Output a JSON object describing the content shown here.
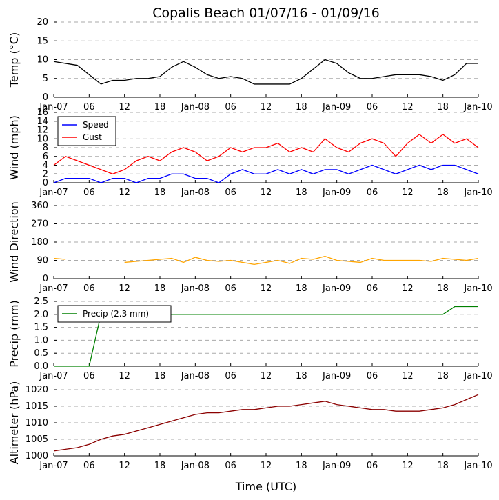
{
  "chart_data": [
    {
      "type": "line",
      "title": "Copalis Beach 01/07/16 - 01/09/16",
      "ylabel": "Temp (°C)",
      "x": [
        0,
        2,
        4,
        6,
        8,
        10,
        12,
        14,
        16,
        18,
        20,
        22,
        24,
        26,
        28,
        30,
        32,
        34,
        36,
        38,
        40,
        42,
        44,
        46,
        48,
        50,
        52,
        54,
        56,
        58,
        60,
        62,
        64,
        66,
        68,
        70,
        72
      ],
      "series": [
        {
          "name": "Temp",
          "color": "#000000",
          "values": [
            9.5,
            9,
            8.5,
            6,
            3.5,
            4.5,
            4.5,
            5,
            5,
            5.5,
            8,
            9.5,
            8,
            6,
            5,
            5.5,
            5,
            3.5,
            3.5,
            3.5,
            3.5,
            5,
            7.5,
            10,
            9,
            6.5,
            5,
            5,
            5.5,
            6,
            6,
            6,
            5.5,
            4.5,
            6,
            9,
            9
          ]
        }
      ],
      "xlim": [
        0,
        72
      ],
      "xticks": [
        {
          "value": 0,
          "label": "Jan-07"
        },
        {
          "value": 6,
          "label": "06"
        },
        {
          "value": 12,
          "label": "12"
        },
        {
          "value": 18,
          "label": "18"
        },
        {
          "value": 24,
          "label": "Jan-08"
        },
        {
          "value": 30,
          "label": "06"
        },
        {
          "value": 36,
          "label": "12"
        },
        {
          "value": 42,
          "label": "18"
        },
        {
          "value": 48,
          "label": "Jan-09"
        },
        {
          "value": 54,
          "label": "06"
        },
        {
          "value": 60,
          "label": "12"
        },
        {
          "value": 66,
          "label": "18"
        },
        {
          "value": 72,
          "label": "Jan-10"
        }
      ],
      "ylim": [
        0,
        20
      ],
      "yticks": [
        0,
        5,
        10,
        15,
        20
      ],
      "grid": true,
      "legend": null
    },
    {
      "type": "line",
      "ylabel": "Wind (mph)",
      "x": [
        0,
        2,
        4,
        6,
        8,
        10,
        12,
        14,
        16,
        18,
        20,
        22,
        24,
        26,
        28,
        30,
        32,
        34,
        36,
        38,
        40,
        42,
        44,
        46,
        48,
        50,
        52,
        54,
        56,
        58,
        60,
        62,
        64,
        66,
        68,
        70,
        72
      ],
      "series": [
        {
          "name": "Speed",
          "color": "#0000ff",
          "values": [
            0,
            1,
            1,
            1,
            0,
            1,
            1,
            0,
            1,
            1,
            2,
            2,
            1,
            1,
            0,
            2,
            3,
            2,
            2,
            3,
            2,
            3,
            2,
            3,
            3,
            2,
            3,
            4,
            3,
            2,
            3,
            4,
            3,
            4,
            4,
            3,
            2
          ]
        },
        {
          "name": "Gust",
          "color": "#ff0000",
          "values": [
            4,
            6,
            5,
            4,
            3,
            2,
            3,
            5,
            6,
            5,
            7,
            8,
            7,
            5,
            6,
            8,
            7,
            8,
            8,
            9,
            7,
            8,
            7,
            10,
            8,
            7,
            9,
            10,
            9,
            6,
            9,
            11,
            9,
            11,
            9,
            10,
            8
          ]
        }
      ],
      "xlim": [
        0,
        72
      ],
      "xticks": [
        {
          "value": 0,
          "label": "Jan-07"
        },
        {
          "value": 6,
          "label": "06"
        },
        {
          "value": 12,
          "label": "12"
        },
        {
          "value": 18,
          "label": "18"
        },
        {
          "value": 24,
          "label": "Jan-08"
        },
        {
          "value": 30,
          "label": "06"
        },
        {
          "value": 36,
          "label": "12"
        },
        {
          "value": 42,
          "label": "18"
        },
        {
          "value": 48,
          "label": "Jan-09"
        },
        {
          "value": 54,
          "label": "06"
        },
        {
          "value": 60,
          "label": "12"
        },
        {
          "value": 66,
          "label": "18"
        },
        {
          "value": 72,
          "label": "Jan-10"
        }
      ],
      "ylim": [
        0,
        16
      ],
      "yticks": [
        0,
        2,
        4,
        6,
        8,
        10,
        12,
        14,
        16
      ],
      "grid": true,
      "legend": "upper left"
    },
    {
      "type": "line",
      "ylabel": "Wind Direction",
      "x": [
        0,
        2,
        4,
        6,
        8,
        10,
        12,
        14,
        16,
        18,
        20,
        22,
        24,
        26,
        28,
        30,
        32,
        34,
        36,
        38,
        40,
        42,
        44,
        46,
        48,
        50,
        52,
        54,
        56,
        58,
        60,
        62,
        64,
        66,
        68,
        70,
        72
      ],
      "series": [
        {
          "name": "Direction",
          "color": "#ffa500",
          "values": [
            100,
            95,
            null,
            null,
            null,
            null,
            80,
            85,
            90,
            95,
            100,
            80,
            105,
            90,
            85,
            90,
            80,
            70,
            80,
            90,
            75,
            100,
            95,
            110,
            90,
            85,
            80,
            100,
            90,
            90,
            90,
            90,
            85,
            100,
            95,
            90,
            100
          ]
        }
      ],
      "xlim": [
        0,
        72
      ],
      "xticks": [
        {
          "value": 0,
          "label": "Jan-07"
        },
        {
          "value": 6,
          "label": "06"
        },
        {
          "value": 12,
          "label": "12"
        },
        {
          "value": 18,
          "label": "18"
        },
        {
          "value": 24,
          "label": "Jan-08"
        },
        {
          "value": 30,
          "label": "06"
        },
        {
          "value": 36,
          "label": "12"
        },
        {
          "value": 42,
          "label": "18"
        },
        {
          "value": 48,
          "label": "Jan-09"
        },
        {
          "value": 54,
          "label": "06"
        },
        {
          "value": 60,
          "label": "12"
        },
        {
          "value": 66,
          "label": "18"
        },
        {
          "value": 72,
          "label": "Jan-10"
        }
      ],
      "ylim": [
        0,
        360
      ],
      "yticks": [
        0,
        90,
        180,
        270,
        360
      ],
      "grid": true,
      "legend": null
    },
    {
      "type": "line",
      "ylabel": "Precip (mm)",
      "x": [
        0,
        2,
        4,
        6,
        8,
        10,
        12,
        14,
        16,
        18,
        20,
        22,
        24,
        26,
        28,
        30,
        32,
        34,
        36,
        38,
        40,
        42,
        44,
        46,
        48,
        50,
        52,
        54,
        56,
        58,
        60,
        62,
        64,
        66,
        68,
        70,
        72
      ],
      "series": [
        {
          "name": "Precip (2.3 mm)",
          "color": "#008000",
          "values": [
            0,
            0,
            0,
            0,
            2,
            2,
            2,
            2,
            2,
            2,
            2,
            2,
            2,
            2,
            2,
            2,
            2,
            2,
            2,
            2,
            2,
            2,
            2,
            2,
            2,
            2,
            2,
            2,
            2,
            2,
            2,
            2,
            2,
            2,
            2.3,
            2.3,
            2.3
          ]
        }
      ],
      "xlim": [
        0,
        72
      ],
      "xticks": [
        {
          "value": 0,
          "label": "Jan-07"
        },
        {
          "value": 6,
          "label": "06"
        },
        {
          "value": 12,
          "label": "12"
        },
        {
          "value": 18,
          "label": "18"
        },
        {
          "value": 24,
          "label": "Jan-08"
        },
        {
          "value": 30,
          "label": "06"
        },
        {
          "value": 36,
          "label": "12"
        },
        {
          "value": 42,
          "label": "18"
        },
        {
          "value": 48,
          "label": "Jan-09"
        },
        {
          "value": 54,
          "label": "06"
        },
        {
          "value": 60,
          "label": "12"
        },
        {
          "value": 66,
          "label": "18"
        },
        {
          "value": 72,
          "label": "Jan-10"
        }
      ],
      "ylim": [
        0,
        2.5
      ],
      "yticks": [
        {
          "value": 0,
          "label": "0.0"
        },
        {
          "value": 0.5,
          "label": "0.5"
        },
        {
          "value": 1,
          "label": "1.0"
        },
        {
          "value": 1.5,
          "label": "1.5"
        },
        {
          "value": 2,
          "label": "2.0"
        },
        {
          "value": 2.5,
          "label": "2.5"
        }
      ],
      "grid": true,
      "legend": "upper left"
    },
    {
      "type": "line",
      "ylabel": "Altimeter (hPa)",
      "xlabel": "Time (UTC)",
      "x": [
        0,
        2,
        4,
        6,
        8,
        10,
        12,
        14,
        16,
        18,
        20,
        22,
        24,
        26,
        28,
        30,
        32,
        34,
        36,
        38,
        40,
        42,
        44,
        46,
        48,
        50,
        52,
        54,
        56,
        58,
        60,
        62,
        64,
        66,
        68,
        70,
        72
      ],
      "series": [
        {
          "name": "Altimeter",
          "color": "#8b0000",
          "values": [
            1001.5,
            1002,
            1002.5,
            1003.5,
            1005,
            1006,
            1006.5,
            1007.5,
            1008.5,
            1009.5,
            1010.5,
            1011.5,
            1012.5,
            1013,
            1013,
            1013.5,
            1014,
            1014,
            1014.5,
            1015,
            1015,
            1015.5,
            1016,
            1016.5,
            1015.5,
            1015,
            1014.5,
            1014,
            1014,
            1013.5,
            1013.5,
            1013.5,
            1014,
            1014.5,
            1015.5,
            1017,
            1018.5
          ]
        }
      ],
      "xlim": [
        0,
        72
      ],
      "xticks": [
        {
          "value": 0,
          "label": "Jan-07"
        },
        {
          "value": 6,
          "label": "06"
        },
        {
          "value": 12,
          "label": "12"
        },
        {
          "value": 18,
          "label": "18"
        },
        {
          "value": 24,
          "label": "Jan-08"
        },
        {
          "value": 30,
          "label": "06"
        },
        {
          "value": 36,
          "label": "12"
        },
        {
          "value": 42,
          "label": "18"
        },
        {
          "value": 48,
          "label": "Jan-09"
        },
        {
          "value": 54,
          "label": "06"
        },
        {
          "value": 60,
          "label": "12"
        },
        {
          "value": 66,
          "label": "18"
        },
        {
          "value": 72,
          "label": "Jan-10"
        }
      ],
      "ylim": [
        1000,
        1020
      ],
      "yticks": [
        1000,
        1005,
        1010,
        1015,
        1020
      ],
      "grid": true,
      "legend": null
    }
  ]
}
